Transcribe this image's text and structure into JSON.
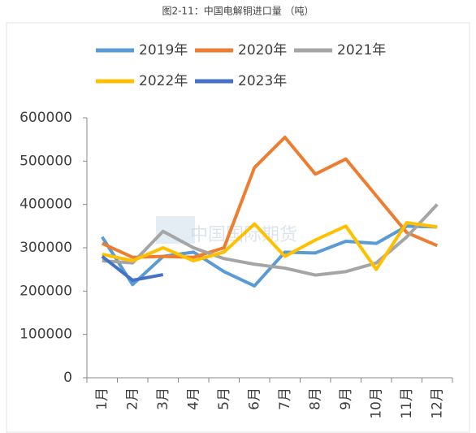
{
  "chart_data": {
    "type": "line",
    "title": "图2-11：中国电解铜进口量 （吨）",
    "watermark": "中国国际期货",
    "categories": [
      "1月",
      "2月",
      "3月",
      "4月",
      "5月",
      "6月",
      "7月",
      "8月",
      "9月",
      "10月",
      "11月",
      "12月"
    ],
    "series": [
      {
        "name": "2019年",
        "color": "#5b9bd5",
        "values": [
          325000,
          215000,
          280000,
          290000,
          245000,
          212000,
          290000,
          288000,
          315000,
          310000,
          350000,
          348000
        ]
      },
      {
        "name": "2020年",
        "color": "#ed7d31",
        "values": [
          310000,
          278000,
          280000,
          278000,
          300000,
          485000,
          555000,
          470000,
          505000,
          420000,
          335000,
          305000
        ]
      },
      {
        "name": "2021年",
        "color": "#a5a5a5",
        "values": [
          270000,
          265000,
          338000,
          300000,
          275000,
          262000,
          253000,
          237000,
          245000,
          265000,
          325000,
          400000
        ]
      },
      {
        "name": "2022年",
        "color": "#ffc000",
        "values": [
          285000,
          270000,
          300000,
          270000,
          290000,
          355000,
          280000,
          318000,
          350000,
          250000,
          358000,
          348000
        ]
      },
      {
        "name": "2023年",
        "color": "#4472c4",
        "values": [
          280000,
          225000,
          238000,
          null,
          null,
          null,
          null,
          null,
          null,
          null,
          null,
          null
        ]
      }
    ],
    "ylim": [
      0,
      600000
    ],
    "yticks": [
      0,
      100000,
      200000,
      300000,
      400000,
      500000,
      600000
    ],
    "grid": false
  }
}
